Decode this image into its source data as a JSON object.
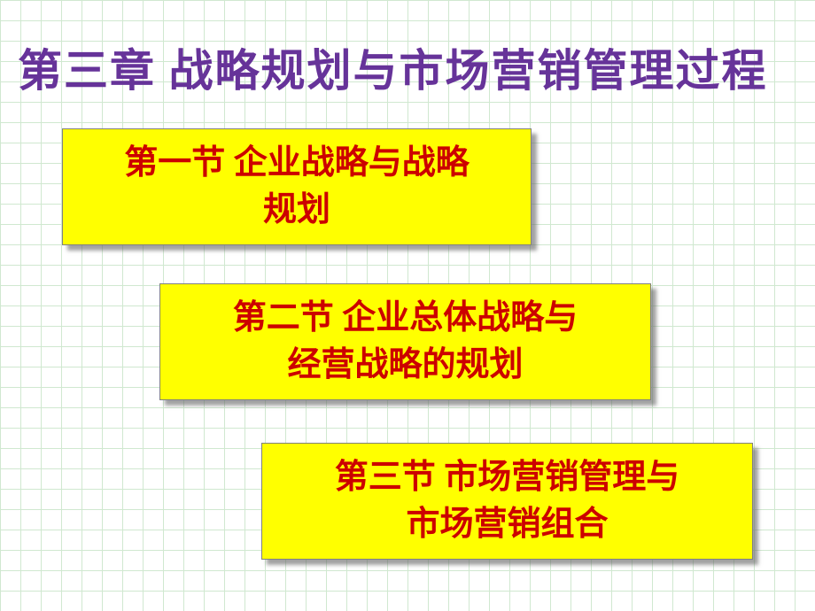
{
  "title": {
    "text": "第三章  战略规划与市场营销管理过程",
    "color": "#663399",
    "fontsize": 50
  },
  "sections": [
    {
      "line1": "第一节  企业战略与战略",
      "line2": "规划",
      "color": "#cc0000",
      "bg_color": "#ffff00",
      "fontsize": 38
    },
    {
      "line1": "第二节  企业总体战略与",
      "line2": "经营战略的规划",
      "color": "#cc0000",
      "bg_color": "#ffff00",
      "fontsize": 38
    },
    {
      "line1": "第三节 市场营销管理与",
      "line2": "市场营销组合",
      "color": "#cc0000",
      "bg_color": "#ffff00",
      "fontsize": 38
    }
  ],
  "background": {
    "color": "#ffffff",
    "grid_color": "#d0e8d0",
    "grid_size": 23
  }
}
